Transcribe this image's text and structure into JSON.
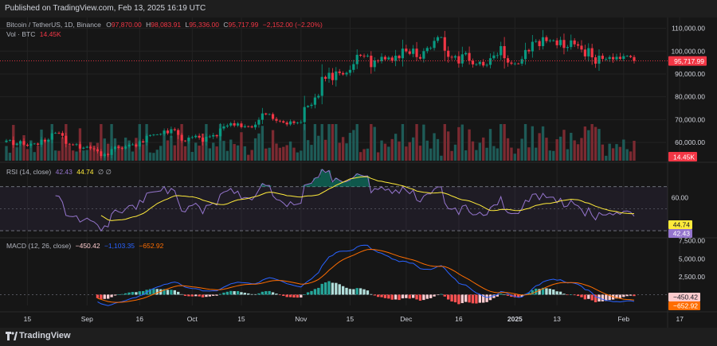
{
  "header": {
    "published": "Published on TradingView.com, Feb 13, 2025 16:19 UTC"
  },
  "main_legend": {
    "symbol": "Bitcoin / TetherUS, 1D, Binance",
    "o_label": "O",
    "o_value": "97,870.00",
    "h_label": "H",
    "h_value": "98,083.91",
    "l_label": "L",
    "l_value": "95,336.00",
    "c_label": "C",
    "c_value": "95,717.99",
    "change": "−2,152.00 (−2.20%)"
  },
  "vol_legend": {
    "label": "Vol · BTC",
    "value": "14.45K"
  },
  "rsi_legend": {
    "label": "RSI (14, close)",
    "rsi": "42.43",
    "ma": "44.74",
    "extra": "∅ ∅"
  },
  "macd_legend": {
    "label": "MACD (12, 26, close)",
    "hist": "−450.42",
    "macd": "−1,103.35",
    "signal": "−652.92"
  },
  "footer": {
    "brand": "TradingView"
  },
  "colors": {
    "up": "#089981",
    "down": "#f23645",
    "vol_up": "#1e5b57",
    "vol_down": "#7b2a31",
    "rsi": "#9575cd",
    "rsi_ma": "#ffeb3b",
    "macd": "#2962ff",
    "signal": "#ff6d00",
    "background": "#161616",
    "grid": "#232323",
    "last_price": "#f23645"
  },
  "chart_data": [
    {
      "type": "candlestick",
      "title": "Bitcoin / TetherUS, 1D, Binance",
      "x_start": "2024-08-09",
      "x_end": "2025-02-13",
      "x_tick_labels": [
        "15",
        "Sep",
        "16",
        "Oct",
        "15",
        "Nov",
        "15",
        "Dec",
        "16",
        "2025",
        "13",
        "Feb",
        "17"
      ],
      "x_tick_dates": [
        "2024-08-15",
        "2024-09-01",
        "2024-09-16",
        "2024-10-01",
        "2024-10-15",
        "2024-11-01",
        "2024-11-15",
        "2024-12-01",
        "2024-12-16",
        "2025-01-01",
        "2025-01-13",
        "2025-02-01",
        "2025-02-17"
      ],
      "y_tick_labels": [
        "110,000.00",
        "100,000.00",
        "90,000.00",
        "80,000.00",
        "70,000.00",
        "60,000.00"
      ],
      "y_ticks": [
        110000,
        100000,
        90000,
        80000,
        70000,
        60000
      ],
      "ylim": [
        52000,
        113000
      ],
      "last_price": 95717.99,
      "last_price_label": "95,717.99",
      "closes": [
        60800,
        61000,
        58900,
        59500,
        60600,
        59000,
        58500,
        59400,
        59500,
        59000,
        61200,
        60400,
        61200,
        64000,
        64200,
        64100,
        62900,
        59400,
        59100,
        59000,
        59200,
        57300,
        57700,
        58100,
        57400,
        57000,
        56100,
        54000,
        54900,
        54500,
        57100,
        58100,
        57600,
        57300,
        58200,
        59000,
        59100,
        58200,
        60500,
        60000,
        62900,
        63200,
        63400,
        63500,
        63700,
        65200,
        64000,
        65800,
        65400,
        63300,
        60800,
        60600,
        62100,
        62300,
        62900,
        62100,
        60300,
        62500,
        62600,
        63200,
        62700,
        66100,
        67000,
        67400,
        68400,
        67400,
        68300,
        66700,
        67100,
        67000,
        66600,
        67800,
        69900,
        72700,
        72300,
        72400,
        70300,
        69500,
        69300,
        68700,
        67900,
        69200,
        68500,
        68700,
        68900,
        75500,
        76000,
        76500,
        79700,
        80400,
        88700,
        87900,
        90500,
        87300,
        91100,
        90400,
        89800,
        90500,
        91800,
        94300,
        98400,
        98000,
        97700,
        98000,
        93000,
        95900,
        95600,
        97500,
        96400,
        97200,
        95800,
        98000,
        96900,
        101100,
        99900,
        98800,
        101100,
        97400,
        96700,
        100000,
        101400,
        101400,
        104500,
        106100,
        106100,
        100200,
        97500,
        97200,
        97800,
        94600,
        98600,
        99200,
        95800,
        94200,
        94300,
        95300,
        93700,
        94000,
        96900,
        98100,
        98200,
        102200,
        96900,
        95000,
        94500,
        94600,
        94500,
        96500,
        100500,
        99900,
        104100,
        104400,
        102200,
        106100,
        104400,
        104700,
        104700,
        102600,
        104900,
        101400,
        101800,
        104700,
        103000,
        102400,
        100700,
        97700,
        101300,
        97300,
        94500,
        98000,
        96600,
        96600,
        97400,
        96400,
        97500,
        96600,
        97800,
        97900,
        97400,
        95717.99
      ],
      "volume_scale_note": "Vol · BTC bars below price",
      "volume_last_label": "14.45K"
    },
    {
      "type": "line",
      "title": "RSI (14, close)",
      "y_tick_labels": [
        "60.00"
      ],
      "bands": [
        70,
        30
      ],
      "ylim": [
        25,
        90
      ],
      "series": [
        {
          "name": "RSI",
          "last_label": "42.43"
        },
        {
          "name": "MA",
          "last_label": "44.74"
        }
      ]
    },
    {
      "type": "bar+line",
      "title": "MACD (12, 26, close)",
      "y_tick_labels": [
        "7,500.00",
        "5,000.00",
        "2,500.00"
      ],
      "y_ticks": [
        7500,
        5000,
        2500
      ],
      "ylim": [
        -1500,
        7800
      ],
      "series": [
        {
          "name": "Histogram",
          "last_label": "−450.42"
        },
        {
          "name": "MACD",
          "last_label": "−1,103.35"
        },
        {
          "name": "Signal",
          "last_label": "−652.92"
        }
      ]
    }
  ]
}
